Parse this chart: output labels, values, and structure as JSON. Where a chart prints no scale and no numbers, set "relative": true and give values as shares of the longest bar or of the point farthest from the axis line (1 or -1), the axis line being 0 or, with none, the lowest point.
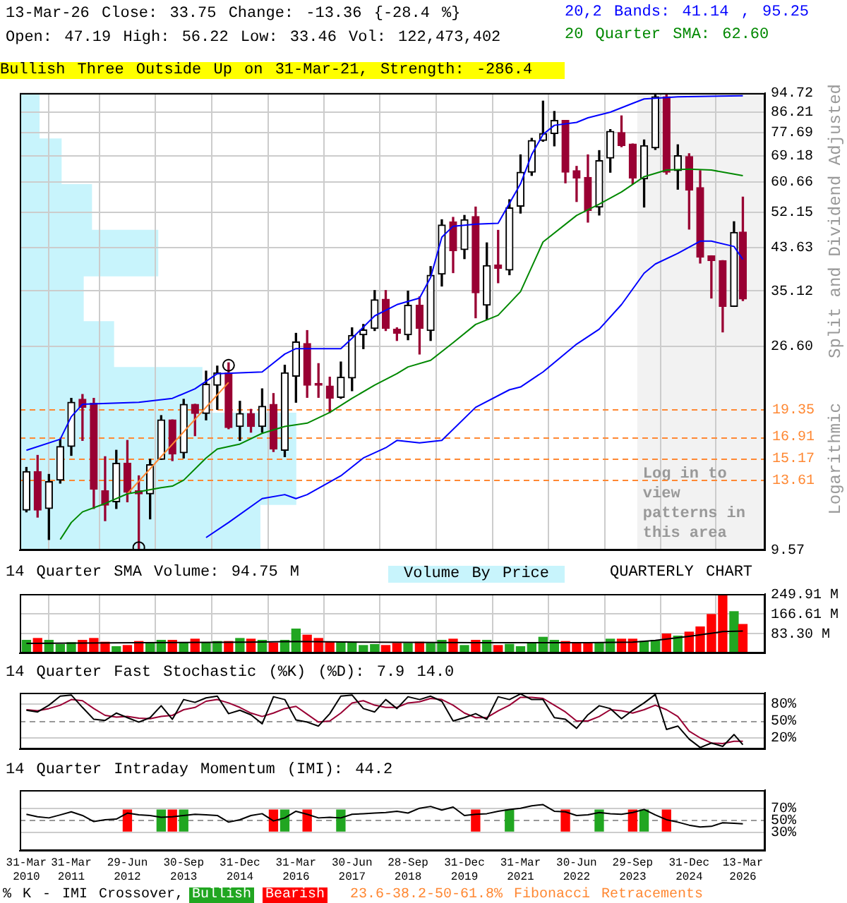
{
  "chart_data": [
    {
      "type": "candlestick",
      "title": "13-Mar-26 Close: 33.75 Change: -13.36 {-28.4 %}",
      "subtitle": "Open: 47.19 High: 56.22 Low: 33.46 Vol: 122,473,402",
      "ylabel": "Split and Dividend Adjusted",
      "y2label": "Logarithmic",
      "annotations": [
        "Bullish Three Outside Up on 31-Mar-21, Strength: -286.4",
        "Volume By Price"
      ],
      "x": [
        "2010-03-31",
        "2010-06-30",
        "2010-09-30",
        "2010-12-31",
        "2011-03-31",
        "2011-06-30",
        "2011-09-30",
        "2011-12-31",
        "2012-03-31",
        "2012-06-29",
        "2012-09-30",
        "2012-12-31",
        "2013-03-31",
        "2013-06-30",
        "2013-09-30",
        "2013-12-31",
        "2014-03-31",
        "2014-06-30",
        "2014-09-30",
        "2014-12-31",
        "2015-03-31",
        "2015-06-30",
        "2015-09-30",
        "2015-12-31",
        "2016-03-31",
        "2016-06-30",
        "2016-09-30",
        "2016-12-31",
        "2017-03-31",
        "2017-06-30",
        "2017-09-30",
        "2017-12-31",
        "2018-03-31",
        "2018-06-30",
        "2018-09-28",
        "2018-12-31",
        "2019-03-31",
        "2019-06-30",
        "2019-09-30",
        "2019-12-31",
        "2020-03-31",
        "2020-06-30",
        "2020-09-30",
        "2020-12-31",
        "2021-03-31",
        "2021-06-30",
        "2021-09-30",
        "2021-12-31",
        "2022-03-31",
        "2022-06-30",
        "2022-09-30",
        "2022-12-31",
        "2023-03-31",
        "2023-06-30",
        "2023-09-29",
        "2023-12-31",
        "2024-03-31",
        "2024-06-30",
        "2024-09-30",
        "2024-12-31",
        "2025-03-31",
        "2025-06-30",
        "2025-09-30",
        "2025-12-31",
        "2026-03-13"
      ],
      "ohlc": [
        [
          11.7,
          14.5,
          11.6,
          14.2
        ],
        [
          14.2,
          15.4,
          11.3,
          11.7
        ],
        [
          11.8,
          14.0,
          10.1,
          13.5
        ],
        [
          13.6,
          16.7,
          13.4,
          16.1
        ],
        [
          16.1,
          20.5,
          15.4,
          20.1
        ],
        [
          20.4,
          20.9,
          16.6,
          19.6
        ],
        [
          20.0,
          20.5,
          11.8,
          13.0
        ],
        [
          12.9,
          15.3,
          11.1,
          12.0
        ],
        [
          12.2,
          15.8,
          11.8,
          14.8
        ],
        [
          14.8,
          16.6,
          12.2,
          12.8
        ],
        [
          12.9,
          13.9,
          9.6,
          12.7
        ],
        [
          12.7,
          15.1,
          11.2,
          14.7
        ],
        [
          15.1,
          18.8,
          15.1,
          18.4
        ],
        [
          18.4,
          18.4,
          15.0,
          15.5
        ],
        [
          15.6,
          20.4,
          15.2,
          19.9
        ],
        [
          19.9,
          19.9,
          17.0,
          19.0
        ],
        [
          19.0,
          23.5,
          18.4,
          22.0
        ],
        [
          21.9,
          24.1,
          19.4,
          23.3
        ],
        [
          23.3,
          24.5,
          17.6,
          17.7
        ],
        [
          17.8,
          20.2,
          16.6,
          19.0
        ],
        [
          19.0,
          19.4,
          17.3,
          17.8
        ],
        [
          17.8,
          21.5,
          17.3,
          19.7
        ],
        [
          19.9,
          21.0,
          15.7,
          15.9
        ],
        [
          15.8,
          24.2,
          15.3,
          23.3
        ],
        [
          22.9,
          28.4,
          20.1,
          27.2
        ],
        [
          27.0,
          28.8,
          20.6,
          21.9
        ],
        [
          22.1,
          24.4,
          20.6,
          21.9
        ],
        [
          21.8,
          22.8,
          19.1,
          20.5
        ],
        [
          20.6,
          24.6,
          20.5,
          22.8
        ],
        [
          22.7,
          29.2,
          21.3,
          28.1
        ],
        [
          28.2,
          29.7,
          26.3,
          28.9
        ],
        [
          29.1,
          35.2,
          28.8,
          33.6
        ],
        [
          33.7,
          35.2,
          28.8,
          29.1
        ],
        [
          29.0,
          29.2,
          27.4,
          28.4
        ],
        [
          28.2,
          35.1,
          27.5,
          32.7
        ],
        [
          32.7,
          34.1,
          25.6,
          29.1
        ],
        [
          28.8,
          39.7,
          27.4,
          38.0
        ],
        [
          38.2,
          50.2,
          36.0,
          48.9
        ],
        [
          49.7,
          50.8,
          38.5,
          43.0
        ],
        [
          43.2,
          51.3,
          41.3,
          50.2
        ],
        [
          51.0,
          53.5,
          30.7,
          34.8
        ],
        [
          32.7,
          44.7,
          30.4,
          39.9
        ],
        [
          40.0,
          47.6,
          36.6,
          39.3
        ],
        [
          39.0,
          55.5,
          38.1,
          53.3
        ],
        [
          53.7,
          69.5,
          51.9,
          63.7
        ],
        [
          63.7,
          75.5,
          62.7,
          74.7
        ],
        [
          74.7,
          91.0,
          74.4,
          77.3
        ],
        [
          77.3,
          86.4,
          72.7,
          82.6
        ],
        [
          82.6,
          82.6,
          60.4,
          63.7
        ],
        [
          64.2,
          65.6,
          55.0,
          61.9
        ],
        [
          62.1,
          69.5,
          49.6,
          52.6
        ],
        [
          53.5,
          71.0,
          51.4,
          67.5
        ],
        [
          68.4,
          78.9,
          63.7,
          78.2
        ],
        [
          77.7,
          84.5,
          72.4,
          72.8
        ],
        [
          73.4,
          73.4,
          60.1,
          61.9
        ],
        [
          61.6,
          74.9,
          53.5,
          72.8
        ],
        [
          72.0,
          94.1,
          71.4,
          93.0
        ],
        [
          93.0,
          94.1,
          63.1,
          63.7
        ],
        [
          64.2,
          73.1,
          58.5,
          69.2
        ],
        [
          68.9,
          69.9,
          47.9,
          58.2
        ],
        [
          59.0,
          64.2,
          40.4,
          41.6
        ],
        [
          41.9,
          41.9,
          33.9,
          40.9
        ],
        [
          40.9,
          40.9,
          28.6,
          32.5
        ],
        [
          32.5,
          49.7,
          32.5,
          47.1
        ],
        [
          47.19,
          56.22,
          33.46,
          33.75
        ]
      ],
      "colors": [
        "#000000",
        "#990033",
        "#000000",
        "#000000",
        "#000000",
        "#990033",
        "#990033",
        "#990033",
        "#000000",
        "#990033",
        "#990033",
        "#000000",
        "#000000",
        "#990033",
        "#000000",
        "#990033",
        "#000000",
        "#000000",
        "#990033",
        "#000000",
        "#990033",
        "#000000",
        "#990033",
        "#000000",
        "#000000",
        "#990033",
        "#990033",
        "#990033",
        "#000000",
        "#000000",
        "#000000",
        "#000000",
        "#990033",
        "#990033",
        "#000000",
        "#990033",
        "#000000",
        "#000000",
        "#990033",
        "#000000",
        "#990033",
        "#000000",
        "#990033",
        "#000000",
        "#000000",
        "#000000",
        "#000000",
        "#000000",
        "#990033",
        "#990033",
        "#990033",
        "#000000",
        "#000000",
        "#990033",
        "#990033",
        "#000000",
        "#000000",
        "#990033",
        "#000000",
        "#990033",
        "#990033",
        "#990033",
        "#990033",
        "#000000",
        "#990033"
      ],
      "log": true,
      "ylim": [
        9.57,
        94.72
      ],
      "yticks": [
        9.57,
        {
          "value": 26.6,
          "label": "26.60"
        },
        35.12,
        43.63,
        52.15,
        60.66,
        69.18,
        77.69,
        86.21,
        94.72
      ],
      "xlim": [
        "2010-02-05",
        "2026-09-10"
      ],
      "xticks": [
        {
          "value": "2010-03-31",
          "label": null
        },
        {
          "value": "2011-03-31",
          "label": null
        },
        {
          "value": "2012-06-29",
          "label": null
        },
        {
          "value": "2013-09-30",
          "label": null
        },
        {
          "value": "2014-12-31",
          "label": null
        },
        {
          "value": "2016-03-31",
          "label": null
        },
        {
          "value": "2017-06-30",
          "label": null
        },
        {
          "value": "2018-09-28",
          "label": null
        },
        {
          "value": "2019-12-31",
          "label": null
        },
        {
          "value": "2021-03-31",
          "label": null
        },
        {
          "value": "2022-06-30",
          "label": null
        },
        {
          "value": "2023-09-29",
          "label": null
        },
        {
          "value": "2024-12-31",
          "label": null
        },
        {
          "value": "2026-03-13",
          "label": null
        }
      ],
      "tick_labels": "y",
      "grid": true,
      "legend": "top right",
      "series": [
        {
          "type": "line",
          "name": "20,2 Bands: 41.14 , 95.25",
          "color": "#0000ff",
          "x": [
            "2010-03-31",
            "2010-12-31",
            "2011-03-31",
            "2011-06-30",
            "2012-09-30",
            "2013-06-30",
            "2013-12-31",
            "2014-06-30",
            "2015-06-30",
            "2015-12-31",
            "2016-03-31",
            "2017-03-31",
            "2017-06-30",
            "2017-12-31",
            "2018-06-30",
            "2018-12-31",
            "2019-03-31",
            "2019-06-30",
            "2019-09-30",
            "2020-03-31",
            "2020-09-30",
            "2021-03-31",
            "2021-06-30",
            "2021-09-30",
            "2021-12-31",
            "2022-06-30",
            "2022-09-30",
            "2023-03-31",
            "2023-09-29",
            "2023-12-31",
            "2024-09-30",
            "2026-03-13"
          ],
          "values": [
            15.8,
            16.7,
            18.7,
            19.9,
            20.1,
            20.5,
            21.5,
            23.2,
            23.4,
            25.6,
            26.3,
            26.3,
            27.7,
            31.0,
            32.8,
            33.9,
            37.6,
            46.0,
            48.6,
            49.1,
            49.3,
            60.1,
            69.6,
            77.0,
            80.6,
            81.8,
            83.7,
            86.1,
            90.0,
            92.0,
            93.0,
            93.5
          ]
        },
        {
          "type": "line",
          "color": "#0000ff",
          "x": [
            "2014-03-31",
            "2014-09-30",
            "2015-06-30",
            "2015-12-31",
            "2016-03-31",
            "2016-06-30",
            "2017-03-31",
            "2017-09-30",
            "2018-03-31",
            "2018-06-30",
            "2018-12-31",
            "2019-06-30",
            "2020-03-31",
            "2020-12-31",
            "2021-03-31",
            "2021-09-30",
            "2022-06-30",
            "2022-12-31",
            "2023-06-30",
            "2023-12-31",
            "2024-03-31",
            "2024-09-30",
            "2025-03-31",
            "2025-06-30",
            "2025-12-31",
            "2026-03-13"
          ],
          "values": [
            10.2,
            11.0,
            12.4,
            12.65,
            12.4,
            12.65,
            13.9,
            15.2,
            16.0,
            16.6,
            16.4,
            16.6,
            19.6,
            21.4,
            21.7,
            23.4,
            26.9,
            29.0,
            32.8,
            38.4,
            40.2,
            42.4,
            45.1,
            45.1,
            43.9,
            41.14
          ]
        },
        {
          "type": "line",
          "name": "20 Quarter SMA: 62.60",
          "color": "#008800",
          "x": [
            "2010-12-31",
            "2011-03-31",
            "2011-06-30",
            "2011-12-31",
            "2012-06-29",
            "2013-03-31",
            "2013-06-30",
            "2013-09-30",
            "2014-03-31",
            "2014-06-30",
            "2014-12-31",
            "2015-06-30",
            "2015-12-31",
            "2016-06-30",
            "2016-12-31",
            "2017-06-30",
            "2017-12-31",
            "2018-06-30",
            "2018-09-28",
            "2019-03-31",
            "2019-09-30",
            "2020-03-31",
            "2020-09-30",
            "2021-03-31",
            "2021-09-30",
            "2022-06-30",
            "2022-12-31",
            "2023-06-30",
            "2023-12-31",
            "2024-06-30",
            "2024-12-31",
            "2025-06-30",
            "2026-03-13"
          ],
          "values": [
            10.1,
            11.0,
            11.6,
            12.1,
            12.7,
            13.1,
            13.2,
            13.6,
            15.2,
            15.9,
            16.3,
            17.2,
            17.8,
            18.1,
            19.1,
            20.5,
            21.9,
            23.2,
            24.0,
            24.8,
            27.1,
            29.7,
            31.1,
            35.0,
            44.9,
            51.3,
            54.3,
            57.7,
            62.3,
            64.4,
            64.7,
            64.4,
            62.6
          ]
        },
        {
          "type": "line",
          "color": "#ff8833",
          "x": [
            "2012-06-29",
            "2014-09-30"
          ],
          "values": [
            12.7,
            22.2
          ]
        },
        {
          "type": "scatter",
          "marker": "circle",
          "color": "#000000",
          "x": [
            "2012-09-30",
            "2014-09-30"
          ],
          "values": [
            9.7,
            24.2
          ]
        }
      ],
      "ref_lines": [
        {
          "axis": "y",
          "value": 19.35,
          "label": "19.35",
          "color": "#ff8833",
          "line_style": "dashed"
        },
        {
          "axis": "y",
          "value": 16.91,
          "label": "16.91",
          "color": "#ff8833",
          "line_style": "dashed"
        },
        {
          "axis": "y",
          "value": 15.17,
          "label": "15.17",
          "color": "#ff8833",
          "line_style": "dashed"
        },
        {
          "axis": "y",
          "value": 13.61,
          "label": "13.61",
          "color": "#ff8833",
          "line_style": "dashed"
        }
      ],
      "bands": [
        {
          "axis": "x",
          "from": "2023-11-05",
          "to": "2026-09-10",
          "label": "Log in to view patterns in this area",
          "color": "#f2f2f2"
        }
      ]
    },
    {
      "type": "bar",
      "orientation": "horizontal",
      "relative": true,
      "categories": [
        null,
        null,
        null,
        null,
        null,
        null,
        null,
        null,
        null,
        null
      ],
      "values": [
        0.07,
        0.15,
        0.26,
        0.5,
        0.23,
        0.34,
        0.66,
        1,
        1,
        0.87
      ],
      "color": "#c8f4fc"
    },
    {
      "type": "bar",
      "title": "14 Quarter SMA Volume: 94.75 M",
      "annotations": [
        "QUARTERLY CHART"
      ],
      "tick_labels": "y",
      "grid": true,
      "x": [
        "2010-03-31",
        "2010-06-30",
        "2010-09-30",
        "2010-12-31",
        "2011-03-31",
        "2011-06-30",
        "2011-09-30",
        "2011-12-31",
        "2012-03-31",
        "2012-06-29",
        "2012-09-30",
        "2012-12-31",
        "2013-03-31",
        "2013-06-30",
        "2013-09-30",
        "2013-12-31",
        "2014-03-31",
        "2014-06-30",
        "2014-09-30",
        "2014-12-31",
        "2015-03-31",
        "2015-06-30",
        "2015-09-30",
        "2015-12-31",
        "2016-03-31",
        "2016-06-30",
        "2016-09-30",
        "2016-12-31",
        "2017-03-31",
        "2017-06-30",
        "2017-09-30",
        "2017-12-31",
        "2018-03-31",
        "2018-06-30",
        "2018-09-28",
        "2018-12-31",
        "2019-03-31",
        "2019-06-30",
        "2019-09-30",
        "2019-12-31",
        "2020-03-31",
        "2020-06-30",
        "2020-09-30",
        "2020-12-31",
        "2021-03-31",
        "2021-06-30",
        "2021-09-30",
        "2021-12-31",
        "2022-03-31",
        "2022-06-30",
        "2022-09-30",
        "2022-12-31",
        "2023-03-31",
        "2023-06-30",
        "2023-09-29",
        "2023-12-31",
        "2024-03-31",
        "2024-06-30",
        "2024-09-30",
        "2024-12-31",
        "2025-03-31",
        "2025-06-30",
        "2025-09-30",
        "2025-12-31",
        "2026-03-13"
      ],
      "ylim": [
        0,
        252
      ],
      "yticks": [
        {
          "value": 83.3,
          "label": "83.30 M"
        },
        {
          "value": 166.61,
          "label": "166.61 M"
        },
        {
          "value": 249.91,
          "label": "249.91 M"
        }
      ],
      "xlim": [
        "2010-02-05",
        "2026-09-10"
      ],
      "xticks": [
        {
          "value": "2010-03-31",
          "label": null
        },
        {
          "value": "2011-03-31",
          "label": null
        },
        {
          "value": "2012-06-29",
          "label": null
        },
        {
          "value": "2013-09-30",
          "label": null
        },
        {
          "value": "2014-12-31",
          "label": null
        },
        {
          "value": "2016-03-31",
          "label": null
        },
        {
          "value": "2017-06-30",
          "label": null
        },
        {
          "value": "2018-09-28",
          "label": null
        },
        {
          "value": "2019-12-31",
          "label": null
        },
        {
          "value": "2021-03-31",
          "label": null
        },
        {
          "value": "2022-06-30",
          "label": null
        },
        {
          "value": "2023-09-29",
          "label": null
        },
        {
          "value": "2024-12-31",
          "label": null
        },
        {
          "value": "2026-03-13",
          "label": null
        }
      ],
      "series": [
        {
          "values": [
            55,
            63,
            55,
            37,
            45,
            55,
            63,
            47,
            28,
            33,
            50,
            45,
            55,
            55,
            45,
            60,
            45,
            50,
            50,
            63,
            60,
            55,
            43,
            55,
            103,
            77,
            63,
            47,
            47,
            47,
            33,
            37,
            33,
            42,
            42,
            47,
            42,
            55,
            60,
            33,
            55,
            55,
            33,
            38,
            28,
            45,
            68,
            55,
            50,
            43,
            43,
            43,
            60,
            60,
            60,
            50,
            55,
            82,
            73,
            90,
            112,
            165,
            250,
            177,
            122.5
          ],
          "colors": [
            "#21a621",
            "#ff0000",
            "#21a621",
            "#21a621",
            "#21a621",
            "#ff0000",
            "#ff0000",
            "#ff0000",
            "#21a621",
            "#ff0000",
            "#ff0000",
            "#21a621",
            "#21a621",
            "#ff0000",
            "#21a621",
            "#ff0000",
            "#21a621",
            "#21a621",
            "#ff0000",
            "#21a621",
            "#ff0000",
            "#21a621",
            "#ff0000",
            "#21a621",
            "#21a621",
            "#ff0000",
            "#ff0000",
            "#ff0000",
            "#21a621",
            "#21a621",
            "#21a621",
            "#21a621",
            "#ff0000",
            "#ff0000",
            "#21a621",
            "#ff0000",
            "#21a621",
            "#21a621",
            "#ff0000",
            "#21a621",
            "#ff0000",
            "#21a621",
            "#ff0000",
            "#21a621",
            "#21a621",
            "#21a621",
            "#21a621",
            "#21a621",
            "#ff0000",
            "#ff0000",
            "#ff0000",
            "#21a621",
            "#21a621",
            "#ff0000",
            "#ff0000",
            "#21a621",
            "#21a621",
            "#ff0000",
            "#21a621",
            "#ff0000",
            "#ff0000",
            "#ff0000",
            "#ff0000",
            "#21a621",
            "#ff0000"
          ]
        },
        {
          "type": "line",
          "color": "#000000",
          "x": [
            "2010-03-31",
            "2012-09-30",
            "2015-03-31",
            "2016-03-31",
            "2017-09-30",
            "2020-03-31",
            "2022-09-30",
            "2023-09-29",
            "2024-03-31",
            "2024-12-31",
            "2025-09-30",
            "2026-03-13"
          ],
          "values": [
            42,
            45,
            47,
            50,
            47,
            45,
            45,
            47,
            55,
            72,
            92,
            94.75
          ]
        }
      ]
    },
    {
      "type": "line",
      "title": "14 Quarter Fast Stochastic (%K) (%D): 7.9  14.0",
      "tick_labels": "y",
      "grid": "y",
      "x": [
        "2010-03-31",
        "2010-06-30",
        "2010-09-30",
        "2010-12-31",
        "2011-03-31",
        "2011-06-30",
        "2011-09-30",
        "2011-12-31",
        "2012-03-31",
        "2012-06-29",
        "2012-09-30",
        "2012-12-31",
        "2013-03-31",
        "2013-06-30",
        "2013-09-30",
        "2013-12-31",
        "2014-03-31",
        "2014-06-30",
        "2014-09-30",
        "2014-12-31",
        "2015-03-31",
        "2015-06-30",
        "2015-09-30",
        "2015-12-31",
        "2016-03-31",
        "2016-06-30",
        "2016-09-30",
        "2016-12-31",
        "2017-03-31",
        "2017-06-30",
        "2017-09-30",
        "2017-12-31",
        "2018-03-31",
        "2018-06-30",
        "2018-09-28",
        "2018-12-31",
        "2019-03-31",
        "2019-06-30",
        "2019-09-30",
        "2019-12-31",
        "2020-03-31",
        "2020-06-30",
        "2020-09-30",
        "2020-12-31",
        "2021-03-31",
        "2021-06-30",
        "2021-09-30",
        "2021-12-31",
        "2022-03-31",
        "2022-06-30",
        "2022-09-30",
        "2022-12-31",
        "2023-03-31",
        "2023-06-30",
        "2023-09-29",
        "2023-12-31",
        "2024-03-31",
        "2024-06-30",
        "2024-09-30",
        "2024-12-31",
        "2025-03-31",
        "2025-06-30",
        "2025-09-30",
        "2025-12-31",
        "2026-03-13"
      ],
      "ylim": [
        0,
        100
      ],
      "yticks": [
        {
          "value": 20,
          "label": "20%"
        },
        {
          "value": 50,
          "label": "50%"
        },
        {
          "value": 80,
          "label": "80%"
        }
      ],
      "xlim": [
        "2010-02-05",
        "2026-09-10"
      ],
      "xticks": [
        {
          "value": "2010-03-31",
          "label": null
        },
        {
          "value": "2011-03-31",
          "label": null
        },
        {
          "value": "2012-06-29",
          "label": null
        },
        {
          "value": "2013-09-30",
          "label": null
        },
        {
          "value": "2014-12-31",
          "label": null
        },
        {
          "value": "2016-03-31",
          "label": null
        },
        {
          "value": "2017-06-30",
          "label": null
        },
        {
          "value": "2018-09-28",
          "label": null
        },
        {
          "value": "2019-12-31",
          "label": null
        },
        {
          "value": "2021-03-31",
          "label": null
        },
        {
          "value": "2022-06-30",
          "label": null
        },
        {
          "value": "2023-09-29",
          "label": null
        },
        {
          "value": "2024-12-31",
          "label": null
        },
        {
          "value": "2026-03-13",
          "label": null
        }
      ],
      "ref_lines": [
        {
          "axis": "y",
          "value": 50,
          "color": "#999999",
          "line_style": "dashed"
        }
      ],
      "series": [
        {
          "color": "#000000",
          "values": [
            69,
            66,
            78,
            94,
            96,
            74,
            53,
            51,
            64,
            56,
            48,
            56,
            77,
            53,
            88,
            83,
            91,
            94,
            63,
            69,
            61,
            45,
            93,
            88,
            52,
            48,
            41,
            63,
            94,
            96,
            72,
            66,
            88,
            72,
            93,
            88,
            94,
            85,
            50,
            56,
            63,
            53,
            93,
            88,
            98,
            88,
            88,
            56,
            53,
            37,
            61,
            77,
            72,
            54,
            69,
            82,
            97,
            35,
            41,
            18,
            3,
            11,
            5,
            26,
            7.9
          ]
        },
        {
          "color": "#990033",
          "values": [
            70,
            68,
            72,
            78,
            88,
            86,
            72,
            60,
            57,
            58,
            55,
            54,
            58,
            60,
            70,
            74,
            85,
            88,
            82,
            74,
            64,
            58,
            64,
            72,
            76,
            62,
            48,
            50,
            64,
            82,
            86,
            78,
            74,
            74,
            82,
            84,
            90,
            88,
            78,
            64,
            56,
            56,
            68,
            78,
            92,
            92,
            90,
            78,
            66,
            50,
            50,
            58,
            70,
            68,
            64,
            70,
            78,
            70,
            58,
            32,
            20,
            11,
            10,
            14,
            14.0
          ]
        }
      ]
    },
    {
      "type": "line",
      "title": "14 Quarter Intraday Momentum (IMI): 44.2",
      "legend": "bottom left",
      "legend_title": "% K - IMI Crossover,",
      "annotations": [
        "23.6-38.2-50-61.8% Fibonacci Retracements"
      ],
      "grid": "y",
      "x": [
        "2010-03-31",
        "2010-06-30",
        "2010-09-30",
        "2010-12-31",
        "2011-03-31",
        "2011-06-30",
        "2011-09-30",
        "2011-12-31",
        "2012-03-31",
        "2012-06-29",
        "2012-09-30",
        "2012-12-31",
        "2013-03-31",
        "2013-06-30",
        "2013-09-30",
        "2013-12-31",
        "2014-03-31",
        "2014-06-30",
        "2014-09-30",
        "2014-12-31",
        "2015-03-31",
        "2015-06-30",
        "2015-09-30",
        "2015-12-31",
        "2016-03-31",
        "2016-06-30",
        "2016-09-30",
        "2016-12-31",
        "2017-03-31",
        "2017-06-30",
        "2017-09-30",
        "2017-12-31",
        "2018-03-31",
        "2018-06-30",
        "2018-09-28",
        "2018-12-31",
        "2019-03-31",
        "2019-06-30",
        "2019-09-30",
        "2019-12-31",
        "2020-03-31",
        "2020-06-30",
        "2020-09-30",
        "2020-12-31",
        "2021-03-31",
        "2021-06-30",
        "2021-09-30",
        "2021-12-31",
        "2022-03-31",
        "2022-06-30",
        "2022-09-30",
        "2022-12-31",
        "2023-03-31",
        "2023-06-30",
        "2023-09-29",
        "2023-12-31",
        "2024-03-31",
        "2024-06-30",
        "2024-09-30",
        "2024-12-31",
        "2025-03-31",
        "2025-06-30",
        "2025-09-30",
        "2025-12-31",
        "2026-03-13"
      ],
      "ylim": [
        0,
        100
      ],
      "yticks": [
        {
          "value": 30,
          "label": "30%"
        },
        {
          "value": 50,
          "label": "50%"
        },
        {
          "value": 70,
          "label": "70%"
        }
      ],
      "xlim": [
        "2010-02-05",
        "2026-09-10"
      ],
      "xticks": [
        {
          "value": "2010-03-31",
          "label": "31-Mar 2010"
        },
        {
          "value": "2011-03-31",
          "label": "31-Mar 2011"
        },
        {
          "value": "2012-06-29",
          "label": "29-Jun 2012"
        },
        {
          "value": "2013-09-30",
          "label": "30-Sep 2013"
        },
        {
          "value": "2014-12-31",
          "label": "31-Dec 2014"
        },
        {
          "value": "2016-03-31",
          "label": "31-Mar 2016"
        },
        {
          "value": "2017-06-30",
          "label": "30-Jun 2017"
        },
        {
          "value": "2018-09-28",
          "label": "28-Sep 2018"
        },
        {
          "value": "2019-12-31",
          "label": "31-Dec 2019"
        },
        {
          "value": "2021-03-31",
          "label": "31-Mar 2021"
        },
        {
          "value": "2022-06-30",
          "label": "30-Jun 2022"
        },
        {
          "value": "2023-09-29",
          "label": "29-Sep 2023"
        },
        {
          "value": "2024-12-31",
          "label": "31-Dec 2024"
        },
        {
          "value": "2026-03-13",
          "label": "13-Mar 2026"
        }
      ],
      "ref_lines": [
        {
          "axis": "y",
          "value": 50,
          "color": "#999999",
          "line_style": "dashed"
        }
      ],
      "series": [
        {
          "color": "#000000",
          "values": [
            60,
            56,
            54,
            59,
            64,
            58,
            48,
            51,
            52,
            62,
            59,
            58,
            55,
            56,
            58,
            60,
            59,
            58,
            47,
            51,
            58,
            61,
            49,
            54,
            65,
            60,
            54,
            55,
            54,
            60,
            61,
            62,
            63,
            65,
            62,
            70,
            73,
            67,
            72,
            58,
            60,
            61,
            65,
            68,
            70,
            74,
            76,
            65,
            64,
            58,
            59,
            63,
            61,
            60,
            63,
            68,
            59,
            51,
            47,
            42,
            39,
            40,
            46,
            45,
            44.2
          ]
        },
        {
          "type": "bar",
          "name": "Bullish",
          "color": "#21a621",
          "x": [
            "2013-03-31",
            "2013-09-30",
            "2015-12-31",
            "2017-03-31",
            "2020-12-31",
            "2022-12-31",
            "2023-12-31"
          ],
          "values": [
            35,
            35,
            35,
            35,
            35,
            35,
            35
          ],
          "base": [
            32,
            32,
            32,
            32,
            32,
            32,
            32
          ]
        },
        {
          "type": "bar",
          "name": "Bearish",
          "color": "#ff0000",
          "x": [
            "2012-06-29",
            "2013-06-30",
            "2015-09-30",
            "2016-06-30",
            "2020-03-31",
            "2022-03-31",
            "2023-09-29",
            "2024-06-30"
          ],
          "values": [
            35,
            35,
            35,
            35,
            35,
            35,
            35,
            35
          ],
          "base": [
            32,
            32,
            32,
            32,
            32,
            32,
            32,
            32
          ]
        }
      ]
    }
  ]
}
